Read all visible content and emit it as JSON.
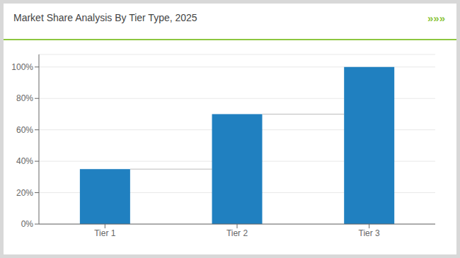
{
  "chart_data": {
    "type": "bar",
    "title": "Market Share Analysis By Tier Type, 2025",
    "annotations": [
      "»»»"
    ],
    "categories": [
      "Tier 1",
      "Tier 2",
      "Tier 3"
    ],
    "values": [
      35,
      70,
      100
    ],
    "color": "#2080C0",
    "ylim": [
      0,
      108
    ],
    "yticks": [
      {
        "value": 0,
        "label": "0%"
      },
      {
        "value": 20,
        "label": "20%"
      },
      {
        "value": 40,
        "label": "40%"
      },
      {
        "value": 60,
        "label": "60%"
      },
      {
        "value": 80,
        "label": "80%"
      },
      {
        "value": 100,
        "label": "100%"
      }
    ],
    "grid": true
  }
}
